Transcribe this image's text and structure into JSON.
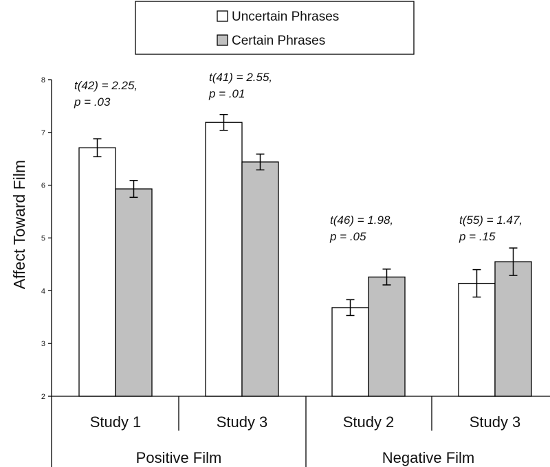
{
  "chart_data": {
    "type": "bar",
    "ylabel": "Affect Toward Film",
    "ylim": [
      2,
      8
    ],
    "yticks": [
      "2",
      "3",
      "4",
      "5",
      "6",
      "7",
      "8"
    ],
    "groups": [
      {
        "name": "Positive Film",
        "categories": [
          "Study 1",
          "Study 3"
        ]
      },
      {
        "name": "Negative Film",
        "categories": [
          "Study 2",
          "Study 3"
        ]
      }
    ],
    "categories": [
      "Study 1",
      "Study 3",
      "Study 2",
      "Study 3"
    ],
    "series": [
      {
        "name": "Uncertain Phrases",
        "color": "#ffffff",
        "values": [
          6.71,
          7.19,
          3.68,
          4.14
        ],
        "errors": [
          0.17,
          0.15,
          0.15,
          0.26
        ]
      },
      {
        "name": "Certain Phrases",
        "color": "#c0c0c0",
        "values": [
          5.93,
          6.44,
          4.26,
          4.55
        ],
        "errors": [
          0.16,
          0.15,
          0.15,
          0.26
        ]
      }
    ],
    "annotations": [
      {
        "line1": "t(42) = 2.25,",
        "line2": "p = .03"
      },
      {
        "line1": "t(41) = 2.55,",
        "line2": "p = .01"
      },
      {
        "line1": "t(46) = 1.98,",
        "line2": "p = .05"
      },
      {
        "line1": "t(55) = 1.47,",
        "line2": "p = .15"
      }
    ],
    "legend": {
      "position": "top-center",
      "entries": [
        "Uncertain Phrases",
        "Certain Phrases"
      ]
    },
    "grid": false
  }
}
